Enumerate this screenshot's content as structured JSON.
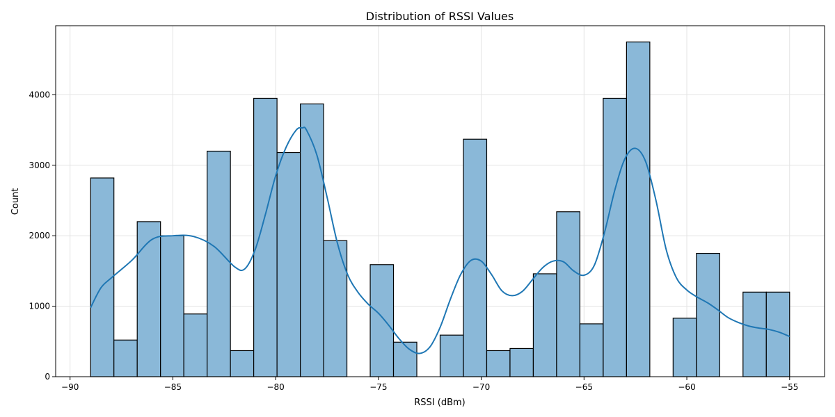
{
  "chart_data": {
    "type": "bar",
    "subtype": "histogram with kde",
    "title": "Distribution of RSSI Values",
    "xlabel": "RSSI (dBm)",
    "ylabel": "Count",
    "xlim": [
      -90.7,
      -53.3
    ],
    "ylim": [
      0,
      4980
    ],
    "grid": true,
    "x_ticks": [
      -90,
      -85,
      -80,
      -75,
      -70,
      -65,
      -60,
      -55
    ],
    "x_tick_labels": [
      "−90",
      "−85",
      "−80",
      "−75",
      "−70",
      "−65",
      "−60",
      "−55"
    ],
    "y_ticks": [
      0,
      1000,
      2000,
      3000,
      4000
    ],
    "y_tick_labels": [
      "0",
      "1000",
      "2000",
      "3000",
      "4000"
    ],
    "bar_color": "#8ab8d8",
    "line_color": "#1f77b4",
    "bins": [
      {
        "start": -89.0,
        "end": -87.867,
        "count": 2820
      },
      {
        "start": -87.867,
        "end": -86.733,
        "count": 520
      },
      {
        "start": -86.733,
        "end": -85.6,
        "count": 2200
      },
      {
        "start": -85.6,
        "end": -84.467,
        "count": 2000
      },
      {
        "start": -84.467,
        "end": -83.333,
        "count": 890
      },
      {
        "start": -83.333,
        "end": -82.2,
        "count": 3200
      },
      {
        "start": -82.2,
        "end": -81.067,
        "count": 370
      },
      {
        "start": -81.067,
        "end": -79.933,
        "count": 3950
      },
      {
        "start": -79.933,
        "end": -78.8,
        "count": 3180
      },
      {
        "start": -78.8,
        "end": -77.667,
        "count": 3870
      },
      {
        "start": -77.667,
        "end": -76.533,
        "count": 1930
      },
      {
        "start": -76.533,
        "end": -75.4,
        "count": 0
      },
      {
        "start": -75.4,
        "end": -74.267,
        "count": 1590
      },
      {
        "start": -74.267,
        "end": -73.133,
        "count": 490
      },
      {
        "start": -73.133,
        "end": -72.0,
        "count": 0
      },
      {
        "start": -72.0,
        "end": -70.867,
        "count": 590
      },
      {
        "start": -70.867,
        "end": -69.733,
        "count": 3370
      },
      {
        "start": -69.733,
        "end": -68.6,
        "count": 370
      },
      {
        "start": -68.6,
        "end": -67.467,
        "count": 400
      },
      {
        "start": -67.467,
        "end": -66.333,
        "count": 1460
      },
      {
        "start": -66.333,
        "end": -65.2,
        "count": 2340
      },
      {
        "start": -65.2,
        "end": -64.067,
        "count": 750
      },
      {
        "start": -64.067,
        "end": -62.933,
        "count": 3950
      },
      {
        "start": -62.933,
        "end": -61.8,
        "count": 4750
      },
      {
        "start": -61.8,
        "end": -60.667,
        "count": 0
      },
      {
        "start": -60.667,
        "end": -59.533,
        "count": 830
      },
      {
        "start": -59.533,
        "end": -58.4,
        "count": 1750
      },
      {
        "start": -58.4,
        "end": -57.267,
        "count": 0
      },
      {
        "start": -57.267,
        "end": -56.133,
        "count": 1200
      },
      {
        "start": -56.133,
        "end": -55.0,
        "count": 1200
      }
    ],
    "kde": {
      "x": [
        -89.0,
        -88.5,
        -88.0,
        -87.0,
        -86.0,
        -85.0,
        -84.0,
        -83.0,
        -82.0,
        -81.5,
        -81.0,
        -80.5,
        -80.0,
        -79.5,
        -79.0,
        -78.7,
        -78.5,
        -78.0,
        -77.5,
        -77.0,
        -76.5,
        -76.0,
        -75.5,
        -75.0,
        -74.5,
        -74.0,
        -73.5,
        -73.0,
        -72.5,
        -72.0,
        -71.5,
        -71.0,
        -70.5,
        -70.0,
        -69.5,
        -69.0,
        -68.5,
        -68.0,
        -67.5,
        -67.0,
        -66.5,
        -66.0,
        -65.5,
        -65.0,
        -64.5,
        -64.0,
        -63.5,
        -63.0,
        -62.5,
        -62.0,
        -61.5,
        -61.0,
        -60.5,
        -60.0,
        -59.5,
        -59.0,
        -58.5,
        -58.0,
        -57.5,
        -57.0,
        -56.5,
        -56.0,
        -55.5,
        -55.0
      ],
      "y": [
        980,
        1260,
        1400,
        1650,
        1950,
        2000,
        1990,
        1850,
        1560,
        1530,
        1800,
        2300,
        2850,
        3250,
        3500,
        3530,
        3500,
        3150,
        2550,
        1900,
        1450,
        1200,
        1030,
        900,
        730,
        540,
        390,
        330,
        420,
        700,
        1100,
        1450,
        1650,
        1640,
        1450,
        1220,
        1150,
        1210,
        1380,
        1550,
        1640,
        1630,
        1500,
        1440,
        1580,
        2050,
        2650,
        3100,
        3240,
        3050,
        2500,
        1800,
        1400,
        1230,
        1130,
        1050,
        950,
        840,
        770,
        720,
        690,
        670,
        630,
        570
      ]
    }
  }
}
